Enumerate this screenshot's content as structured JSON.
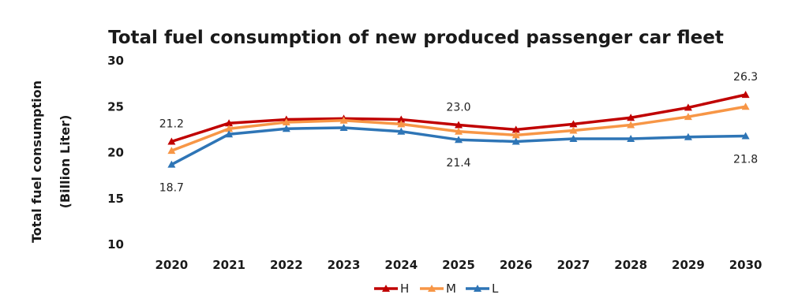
{
  "chart_data": {
    "type": "line",
    "title": "Total fuel consumption of new produced passenger car fleet",
    "ylabel_line1": "Total fuel consumption",
    "ylabel_line2": "(Billion Liter)",
    "xlabel": "",
    "categories": [
      "2020",
      "2021",
      "2022",
      "2023",
      "2024",
      "2025",
      "2026",
      "2027",
      "2028",
      "2029",
      "2030"
    ],
    "ylim": [
      10,
      30
    ],
    "yticks": [
      10,
      15,
      20,
      25,
      30
    ],
    "grid": false,
    "legend_position": "bottom",
    "series": [
      {
        "name": "H",
        "color": "#c00000",
        "values": [
          21.2,
          23.2,
          23.6,
          23.7,
          23.6,
          23.0,
          22.5,
          23.1,
          23.8,
          24.9,
          26.3
        ]
      },
      {
        "name": "M",
        "color": "#f79646",
        "values": [
          20.2,
          22.6,
          23.3,
          23.5,
          23.1,
          22.3,
          21.9,
          22.4,
          23.0,
          23.9,
          25.0
        ]
      },
      {
        "name": "L",
        "color": "#2e75b6",
        "values": [
          18.7,
          22.0,
          22.6,
          22.7,
          22.3,
          21.4,
          21.2,
          21.5,
          21.5,
          21.7,
          21.8
        ]
      }
    ],
    "annotations": [
      {
        "text": "21.2",
        "series": "H",
        "category": "2020",
        "placement": "above"
      },
      {
        "text": "18.7",
        "series": "L",
        "category": "2020",
        "placement": "below"
      },
      {
        "text": "23.0",
        "series": "H",
        "category": "2025",
        "placement": "above"
      },
      {
        "text": "21.4",
        "series": "L",
        "category": "2025",
        "placement": "below"
      },
      {
        "text": "26.3",
        "series": "H",
        "category": "2030",
        "placement": "above"
      },
      {
        "text": "21.8",
        "series": "L",
        "category": "2030",
        "placement": "below"
      }
    ]
  }
}
